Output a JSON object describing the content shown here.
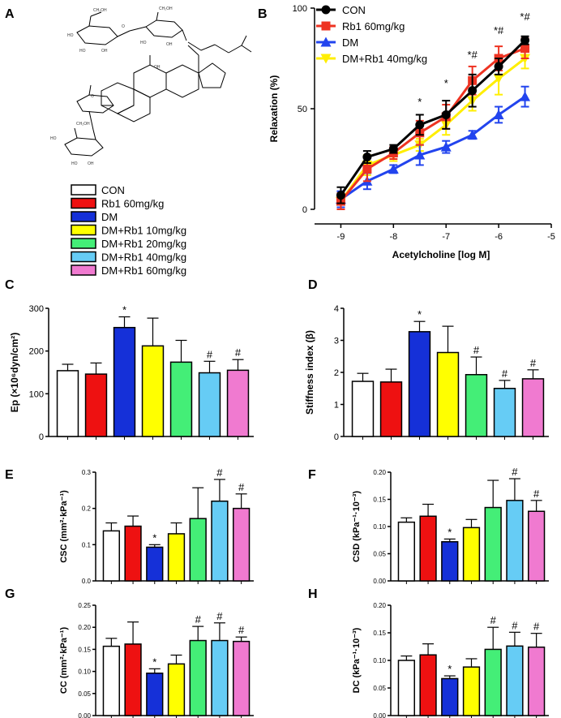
{
  "panels": {
    "A": "A",
    "B": "B",
    "C": "C",
    "D": "D",
    "E": "E",
    "F": "F",
    "G": "G",
    "H": "H"
  },
  "colors": {
    "CON": "#ffffff",
    "Rb1 60mg/kg": "#ee1111",
    "DM": "#1530d8",
    "DM+Rb1 10mg/kg": "#ffff00",
    "DM+Rb1 20mg/kg": "#44ee77",
    "DM+Rb1 40mg/kg": "#66ccf5",
    "DM+Rb1 60mg/kg": "#f07ad0",
    "line_CON": "#000000",
    "line_Rb1": "#ee3322",
    "line_DM": "#2244ee",
    "line_DMRb1": "#ffee00"
  },
  "group_legend": [
    {
      "label": "CON",
      "color": "#ffffff"
    },
    {
      "label": "Rb1 60mg/kg",
      "color": "#ee1111"
    },
    {
      "label": "DM",
      "color": "#1530d8"
    },
    {
      "label": "DM+Rb1 10mg/kg",
      "color": "#ffff00"
    },
    {
      "label": "DM+Rb1 20mg/kg",
      "color": "#44ee77"
    },
    {
      "label": "DM+Rb1 40mg/kg",
      "color": "#66ccf5"
    },
    {
      "label": "DM+Rb1 60mg/kg",
      "color": "#f07ad0"
    }
  ],
  "chart_data": [
    {
      "id": "B",
      "type": "line",
      "xlabel": "Acetylcholine [log M]",
      "ylabel": "Relaxation (%)",
      "xlim": [
        -9.5,
        -5
      ],
      "ylim": [
        0,
        100
      ],
      "xticks": [
        "-9",
        "-8",
        "-7",
        "-6",
        "-5"
      ],
      "yticks": [
        "0",
        "50",
        "100"
      ],
      "x": [
        -9,
        -8.5,
        -8,
        -7.5,
        -7,
        -6.5,
        -6,
        -5.5
      ],
      "series": [
        {
          "name": "CON",
          "color": "#000000",
          "marker": "circle",
          "values": [
            7,
            26,
            30,
            42,
            47,
            59,
            71,
            84
          ],
          "errors": [
            4,
            3,
            2,
            5,
            7,
            8,
            4,
            2
          ]
        },
        {
          "name": "Rb1 60mg/kg",
          "color": "#ee3322",
          "marker": "square",
          "values": [
            4,
            20,
            28,
            38,
            46,
            64,
            75,
            80
          ],
          "errors": [
            4,
            6,
            3,
            6,
            6,
            7,
            6,
            5
          ]
        },
        {
          "name": "DM",
          "color": "#2244ee",
          "marker": "triangle",
          "values": [
            5,
            14,
            20,
            27,
            31,
            37,
            47,
            56
          ],
          "errors": [
            4,
            4,
            2,
            5,
            3,
            2,
            4,
            5
          ]
        },
        {
          "name": "DM+Rb1 40mg/kg",
          "color": "#ffee00",
          "marker": "triangle-down",
          "values": [
            4,
            22,
            27,
            32,
            42,
            54,
            65,
            75
          ],
          "errors": [
            3,
            5,
            3,
            3,
            5,
            5,
            8,
            5
          ]
        }
      ],
      "annotations": [
        {
          "x": -7.5,
          "text": "*"
        },
        {
          "x": -7,
          "text": "*"
        },
        {
          "x": -6.5,
          "text": "*#"
        },
        {
          "x": -6,
          "text": "*#"
        },
        {
          "x": -5.5,
          "text": "*#"
        }
      ]
    },
    {
      "id": "C",
      "type": "bar",
      "ylabel": "Ep (×10⁶dyn/cm²)",
      "ylim": [
        0,
        300
      ],
      "yticks": [
        "0",
        "100",
        "200",
        "300"
      ],
      "categories": [
        "CON",
        "Rb1 60mg/kg",
        "DM",
        "DM+Rb1 10mg/kg",
        "DM+Rb1 20mg/kg",
        "DM+Rb1 40mg/kg",
        "DM+Rb1 60mg/kg"
      ],
      "values": [
        154,
        146,
        255,
        212,
        174,
        149,
        155
      ],
      "errors": [
        15,
        26,
        25,
        65,
        51,
        27,
        25
      ],
      "sig": [
        "",
        "",
        "*",
        "",
        "",
        "#",
        "#"
      ]
    },
    {
      "id": "D",
      "type": "bar",
      "ylabel": "Stiffness index (β)",
      "ylim": [
        0,
        4
      ],
      "yticks": [
        "0",
        "1",
        "2",
        "3",
        "4"
      ],
      "categories": [
        "CON",
        "Rb1 60mg/kg",
        "DM",
        "DM+Rb1 10mg/kg",
        "DM+Rb1 20mg/kg",
        "DM+Rb1 40mg/kg",
        "DM+Rb1 60mg/kg"
      ],
      "values": [
        1.72,
        1.7,
        3.27,
        2.62,
        1.93,
        1.5,
        1.8
      ],
      "errors": [
        0.25,
        0.4,
        0.32,
        0.82,
        0.55,
        0.25,
        0.28
      ],
      "sig": [
        "",
        "",
        "*",
        "",
        "#",
        "#",
        "#"
      ]
    },
    {
      "id": "E",
      "type": "bar",
      "ylabel": "CSC (mm²·kPa⁻¹)",
      "ylim": [
        0,
        0.3
      ],
      "yticks": [
        "0.0",
        "0.1",
        "0.2",
        "0.3"
      ],
      "categories": [
        "CON",
        "Rb1 60mg/kg",
        "DM",
        "DM+Rb1 10mg/kg",
        "DM+Rb1 20mg/kg",
        "DM+Rb1 40mg/kg",
        "DM+Rb1 60mg/kg"
      ],
      "values": [
        0.138,
        0.151,
        0.093,
        0.13,
        0.172,
        0.22,
        0.2
      ],
      "errors": [
        0.022,
        0.028,
        0.007,
        0.03,
        0.085,
        0.06,
        0.04
      ],
      "sig": [
        "",
        "",
        "*",
        "",
        "",
        "#",
        "#"
      ]
    },
    {
      "id": "F",
      "type": "bar",
      "ylabel": "CSD (kPa⁻¹·10⁻³)",
      "ylim": [
        0,
        0.2
      ],
      "yticks": [
        "0.00",
        "0.05",
        "0.10",
        "0.15",
        "0.20"
      ],
      "categories": [
        "CON",
        "Rb1 60mg/kg",
        "DM",
        "DM+Rb1 10mg/kg",
        "DM+Rb1 20mg/kg",
        "DM+Rb1 40mg/kg",
        "DM+Rb1 60mg/kg"
      ],
      "values": [
        0.108,
        0.119,
        0.072,
        0.098,
        0.135,
        0.148,
        0.128
      ],
      "errors": [
        0.008,
        0.022,
        0.005,
        0.015,
        0.05,
        0.04,
        0.02
      ],
      "sig": [
        "",
        "",
        "*",
        "",
        "",
        "#",
        "#"
      ]
    },
    {
      "id": "G",
      "type": "bar",
      "ylabel": "CC (mm²·kPa⁻¹)",
      "ylim": [
        0,
        0.25
      ],
      "yticks": [
        "0.00",
        "0.05",
        "0.10",
        "0.15",
        "0.20",
        "0.25"
      ],
      "categories": [
        "CON",
        "Rb1 60mg/kg",
        "DM",
        "DM+Rb1 10mg/kg",
        "DM+Rb1 20mg/kg",
        "DM+Rb1 40mg/kg",
        "DM+Rb1 60mg/kg"
      ],
      "values": [
        0.157,
        0.162,
        0.096,
        0.117,
        0.17,
        0.17,
        0.168
      ],
      "errors": [
        0.018,
        0.05,
        0.01,
        0.02,
        0.032,
        0.04,
        0.01
      ],
      "sig": [
        "",
        "",
        "*",
        "",
        "#",
        "#",
        "#"
      ]
    },
    {
      "id": "H",
      "type": "bar",
      "ylabel": "DC (kPa⁻¹·10⁻³)",
      "ylim": [
        0,
        0.2
      ],
      "yticks": [
        "0.00",
        "0.05",
        "0.10",
        "0.15",
        "0.20"
      ],
      "categories": [
        "CON",
        "Rb1 60mg/kg",
        "DM",
        "DM+Rb1 10mg/kg",
        "DM+Rb1 20mg/kg",
        "DM+Rb1 40mg/kg",
        "DM+Rb1 60mg/kg"
      ],
      "values": [
        0.1,
        0.11,
        0.067,
        0.088,
        0.12,
        0.126,
        0.124
      ],
      "errors": [
        0.008,
        0.02,
        0.005,
        0.015,
        0.04,
        0.025,
        0.025
      ],
      "sig": [
        "",
        "",
        "*",
        "",
        "#",
        "#",
        "#"
      ]
    }
  ]
}
